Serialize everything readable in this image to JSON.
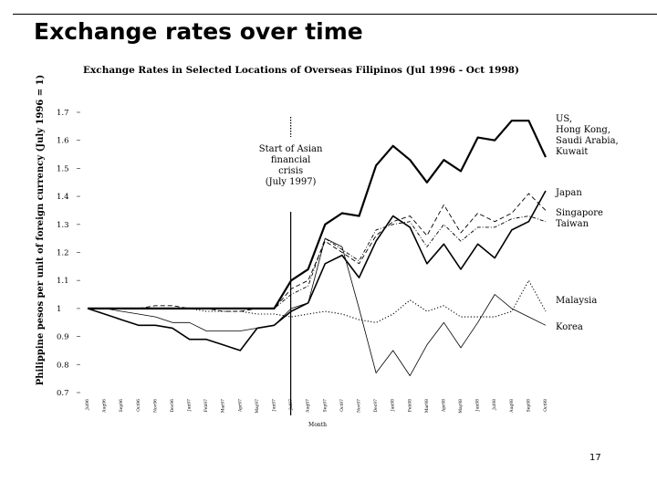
{
  "slide": {
    "title": "Exchange rates over time",
    "page_number": "17"
  },
  "chart_data": {
    "type": "line",
    "title": "Exchange Rates in Selected Locations of Overseas Filipinos (Jul 1996 - Oct 1998)",
    "xlabel": "Month",
    "ylabel": "Philippine pesos per unit of foreign currency (July 1996 = 1)",
    "ylim": [
      0.7,
      1.7
    ],
    "yticks": [
      "0.7",
      "0.8",
      "0.9",
      "1",
      "1.1",
      "1.2",
      "1.3",
      "1.4",
      "1.5",
      "1.6",
      "1.7"
    ],
    "categories": [
      "Jul96",
      "Aug96",
      "Sep96",
      "Oct96",
      "Nov96",
      "Dec96",
      "Jan97",
      "Feb97",
      "Mar97",
      "Apr97",
      "May97",
      "Jun97",
      "Jul97",
      "Aug97",
      "Sep97",
      "Oct97",
      "Nov97",
      "Dec97",
      "Jan98",
      "Feb98",
      "Mar98",
      "Apr98",
      "May98",
      "Jun98",
      "Jul98",
      "Aug98",
      "Sep98",
      "Oct98"
    ],
    "x_tick_labels": [
      "Jul96",
      "Aug96",
      "Sep96",
      "Oct96",
      "Nov96",
      "Dec96",
      "Jan97",
      "Feb97",
      "Mar97",
      "Apr97",
      "May97",
      "Jun97",
      "Jul97",
      "Aug97",
      "Sep97",
      "Oct97",
      "Nov97",
      "Dec97",
      "Jan98",
      "Feb98",
      "Mar98",
      "Apr98",
      "May98",
      "Jun98",
      "Jul98",
      "Aug98",
      "Sep98",
      "Oct98"
    ],
    "annotation": {
      "text": [
        "Start of Asian",
        "financial",
        "crisis",
        "(July 1997)"
      ],
      "at_category": "Jul97"
    },
    "series": [
      {
        "name": "US, Hong Kong, Saudi Arabia, Kuwait",
        "label_lines": [
          "US,",
          "Hong Kong,",
          "Saudi Arabia,",
          "Kuwait"
        ],
        "style": "bold",
        "values": [
          1.0,
          1.0,
          1.0,
          1.0,
          1.0,
          1.0,
          1.0,
          1.0,
          1.0,
          1.0,
          1.0,
          1.0,
          1.1,
          1.14,
          1.3,
          1.34,
          1.33,
          1.51,
          1.58,
          1.53,
          1.45,
          1.53,
          1.49,
          1.61,
          1.6,
          1.67,
          1.67,
          1.54
        ]
      },
      {
        "name": "Japan",
        "label_lines": [
          "Japan"
        ],
        "style": "medium",
        "values": [
          1.0,
          0.98,
          0.96,
          0.94,
          0.94,
          0.93,
          0.89,
          0.89,
          0.87,
          0.85,
          0.93,
          0.94,
          0.99,
          1.02,
          1.16,
          1.19,
          1.11,
          1.24,
          1.33,
          1.29,
          1.16,
          1.23,
          1.14,
          1.23,
          1.18,
          1.28,
          1.31,
          1.42
        ]
      },
      {
        "name": "Singapore",
        "label_lines": [
          "Singapore"
        ],
        "style": "dashed",
        "values": [
          1.0,
          1.0,
          1.0,
          1.0,
          1.01,
          1.01,
          1.0,
          1.0,
          0.99,
          0.99,
          1.0,
          1.0,
          1.07,
          1.1,
          1.24,
          1.2,
          1.16,
          1.26,
          1.31,
          1.33,
          1.26,
          1.37,
          1.27,
          1.34,
          1.31,
          1.34,
          1.41,
          1.35
        ]
      },
      {
        "name": "Taiwan",
        "label_lines": [
          "Taiwan"
        ],
        "style": "dashdot",
        "values": [
          1.0,
          1.0,
          1.0,
          1.0,
          1.0,
          1.0,
          1.0,
          1.0,
          1.0,
          1.0,
          1.0,
          1.0,
          1.05,
          1.08,
          1.25,
          1.21,
          1.17,
          1.28,
          1.3,
          1.31,
          1.22,
          1.3,
          1.24,
          1.29,
          1.29,
          1.32,
          1.33,
          1.31
        ]
      },
      {
        "name": "Malaysia",
        "label_lines": [
          "Malaysia"
        ],
        "style": "dotted",
        "values": [
          1.0,
          1.0,
          1.0,
          1.0,
          1.0,
          1.0,
          1.0,
          0.99,
          0.99,
          0.99,
          0.98,
          0.98,
          0.97,
          0.98,
          0.99,
          0.98,
          0.96,
          0.95,
          0.98,
          1.03,
          0.99,
          1.01,
          0.97,
          0.97,
          0.97,
          0.99,
          1.1,
          0.99
        ]
      },
      {
        "name": "Korea",
        "label_lines": [
          "Korea"
        ],
        "style": "thin",
        "values": [
          1.0,
          1.0,
          0.99,
          0.98,
          0.97,
          0.95,
          0.95,
          0.92,
          0.92,
          0.92,
          0.93,
          0.94,
          1.0,
          1.02,
          1.25,
          1.22,
          1.0,
          0.77,
          0.85,
          0.76,
          0.87,
          0.95,
          0.86,
          0.95,
          1.05,
          1.0,
          0.97,
          0.94
        ]
      }
    ]
  }
}
